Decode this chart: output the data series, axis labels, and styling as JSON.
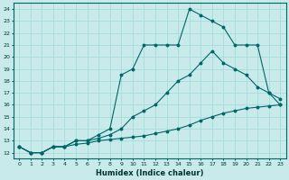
{
  "xlabel": "Humidex (Indice chaleur)",
  "bg_color": "#c8eaea",
  "line_color": "#006666",
  "grid_color": "#aadddd",
  "xlim": [
    -0.5,
    23.5
  ],
  "ylim": [
    11.5,
    24.5
  ],
  "xticks": [
    0,
    1,
    2,
    3,
    4,
    5,
    6,
    7,
    8,
    9,
    10,
    11,
    12,
    13,
    14,
    15,
    16,
    17,
    18,
    19,
    20,
    21,
    22,
    23
  ],
  "yticks": [
    12,
    13,
    14,
    15,
    16,
    17,
    18,
    19,
    20,
    21,
    22,
    23,
    24
  ],
  "series": [
    {
      "x": [
        0,
        1,
        2,
        3,
        4,
        5,
        6,
        7,
        8,
        9,
        10,
        11,
        12,
        13,
        14,
        15,
        16,
        17,
        18,
        19,
        20,
        21,
        22,
        23
      ],
      "y": [
        12.5,
        12.0,
        12.0,
        12.5,
        12.5,
        12.7,
        12.8,
        13.0,
        13.1,
        13.2,
        13.3,
        13.4,
        13.6,
        13.8,
        14.0,
        14.3,
        14.7,
        15.0,
        15.3,
        15.5,
        15.7,
        15.8,
        15.9,
        16.0
      ]
    },
    {
      "x": [
        0,
        1,
        2,
        3,
        4,
        5,
        6,
        7,
        8,
        9,
        10,
        11,
        12,
        13,
        14,
        15,
        16,
        17,
        18,
        19,
        20,
        21,
        22,
        23
      ],
      "y": [
        12.5,
        12.0,
        12.0,
        12.5,
        12.5,
        13.0,
        13.0,
        13.2,
        13.5,
        14.0,
        15.0,
        15.5,
        16.0,
        17.0,
        18.0,
        18.5,
        19.5,
        20.5,
        19.5,
        19.0,
        18.5,
        17.5,
        17.0,
        16.5
      ]
    },
    {
      "x": [
        0,
        1,
        2,
        3,
        4,
        5,
        6,
        7,
        8,
        9,
        10,
        11,
        12,
        13,
        14,
        15,
        16,
        17,
        18,
        19,
        20,
        21,
        22,
        23
      ],
      "y": [
        12.5,
        12.0,
        12.0,
        12.5,
        12.5,
        13.0,
        13.0,
        13.5,
        14.0,
        18.5,
        19.0,
        21.0,
        21.0,
        21.0,
        21.0,
        24.0,
        23.5,
        23.0,
        22.5,
        21.0,
        21.0,
        21.0,
        17.0,
        16.0
      ]
    }
  ]
}
